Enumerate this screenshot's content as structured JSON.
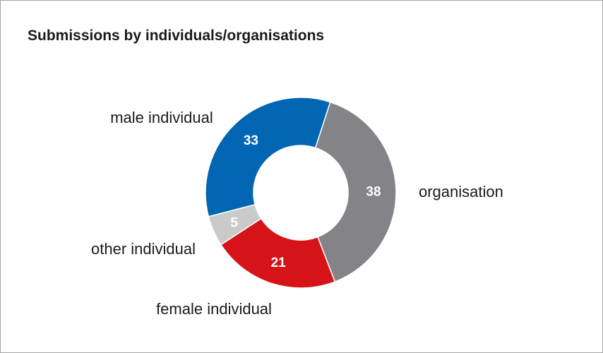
{
  "chart_data": {
    "type": "pie",
    "title": "Submissions by individuals/organisations",
    "categories": [
      "organisation",
      "female individual",
      "other individual",
      "male individual"
    ],
    "values": [
      38,
      21,
      5,
      33
    ],
    "colors": [
      "#838388",
      "#d7131a",
      "#cacaca",
      "#0066b3"
    ],
    "legend": "none",
    "donut": true
  }
}
